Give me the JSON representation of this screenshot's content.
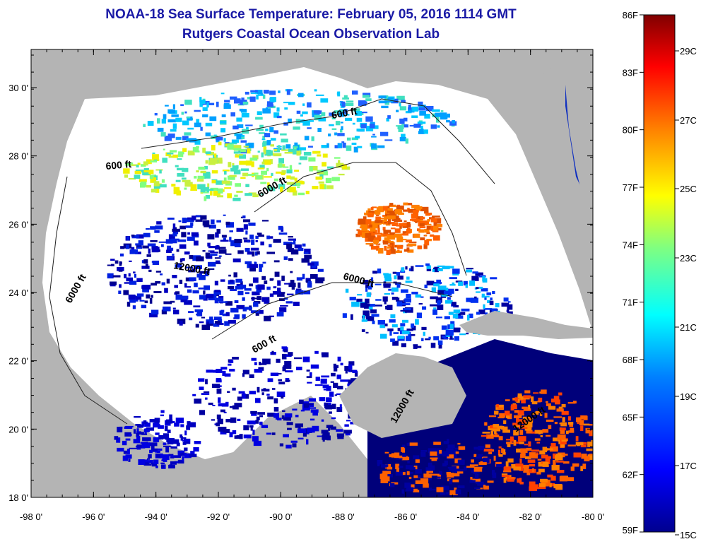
{
  "title": "NOAA-18 Sea Surface Temperature:  February 05, 2016 1114 GMT",
  "subtitle": "Rutgers Coastal Ocean Observation Lab",
  "x_ticks": [
    "-98 0'",
    "-96 0'",
    "-94 0'",
    "-92 0'",
    "-90 0'",
    "-88 0'",
    "-86 0'",
    "-84 0'",
    "-82 0'",
    "-80 0'"
  ],
  "y_ticks": [
    "18 0'",
    "20 0'",
    "22 0'",
    "24 0'",
    "26 0'",
    "28 0'",
    "30 0'"
  ],
  "contour_labels": [
    "600 ft",
    "600 ft",
    "6000 ft",
    "6000 ft",
    "12000 ft",
    "6000 ft",
    "600 ft",
    "12000 ft",
    "12000 ft"
  ],
  "colorbar": {
    "fahrenheit": [
      "86F",
      "83F",
      "80F",
      "77F",
      "74F",
      "71F",
      "68F",
      "65F",
      "62F",
      "59F"
    ],
    "celsius": [
      "29C",
      "27C",
      "25C",
      "23C",
      "21C",
      "19C",
      "17C",
      "15C"
    ],
    "colors": [
      "#00008f",
      "#0000ff",
      "#0080ff",
      "#00ffff",
      "#80ff80",
      "#ffff00",
      "#ff8000",
      "#ff0000",
      "#800000"
    ]
  },
  "colors": {
    "land": "#b4b4b4",
    "no_data": "#ffffff",
    "title": "#1a1aa6"
  }
}
